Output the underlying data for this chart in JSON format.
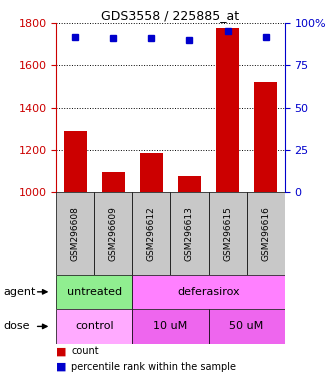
{
  "title": "GDS3558 / 225885_at",
  "samples": [
    "GSM296608",
    "GSM296609",
    "GSM296612",
    "GSM296613",
    "GSM296615",
    "GSM296616"
  ],
  "counts": [
    1290,
    1095,
    1185,
    1075,
    1775,
    1520
  ],
  "percentiles": [
    92,
    91,
    91,
    90,
    95,
    92
  ],
  "ylim_left": [
    1000,
    1800
  ],
  "ylim_right": [
    0,
    100
  ],
  "yticks_left": [
    1000,
    1200,
    1400,
    1600,
    1800
  ],
  "yticks_right": [
    0,
    25,
    50,
    75,
    100
  ],
  "bar_color": "#cc0000",
  "dot_color": "#0000cc",
  "agent_groups": [
    {
      "label": "untreated",
      "start": 0,
      "end": 2,
      "color": "#90ee90"
    },
    {
      "label": "deferasirox",
      "start": 2,
      "end": 6,
      "color": "#ff80ff"
    }
  ],
  "dose_groups": [
    {
      "label": "control",
      "start": 0,
      "end": 2,
      "color": "#ffaaff"
    },
    {
      "label": "10 uM",
      "start": 2,
      "end": 4,
      "color": "#ee66ee"
    },
    {
      "label": "50 uM",
      "start": 4,
      "end": 6,
      "color": "#ee66ee"
    }
  ],
  "left_axis_color": "#cc0000",
  "right_axis_color": "#0000cc",
  "plot_bg_color": "#ffffff",
  "sample_bg_color": "#c8c8c8",
  "legend_count_label": "count",
  "legend_pct_label": "percentile rank within the sample"
}
